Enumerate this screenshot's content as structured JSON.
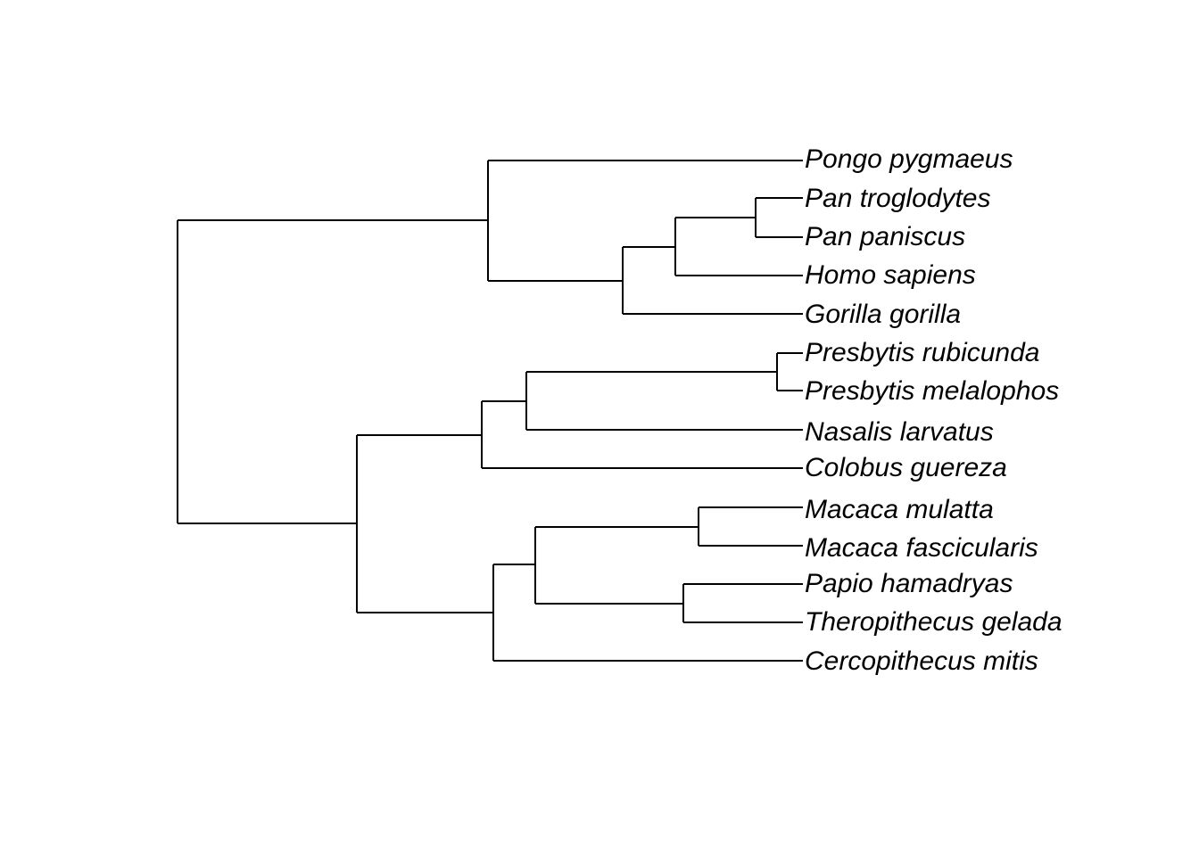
{
  "tree": {
    "type": "phylogram",
    "line_color": "#000000",
    "tips": [
      "Pongo pygmaeus",
      "Pan troglodytes",
      "Pan paniscus",
      "Homo sapiens",
      "Gorilla gorilla",
      "Presbytis rubicunda",
      "Presbytis melalophos",
      "Nasalis larvatus",
      "Colobus guereza",
      "Macaca mulatta",
      "Macaca fascicularis",
      "Papio hamadryas",
      "Theropithecus gelada",
      "Cercopithecus mitis"
    ]
  }
}
